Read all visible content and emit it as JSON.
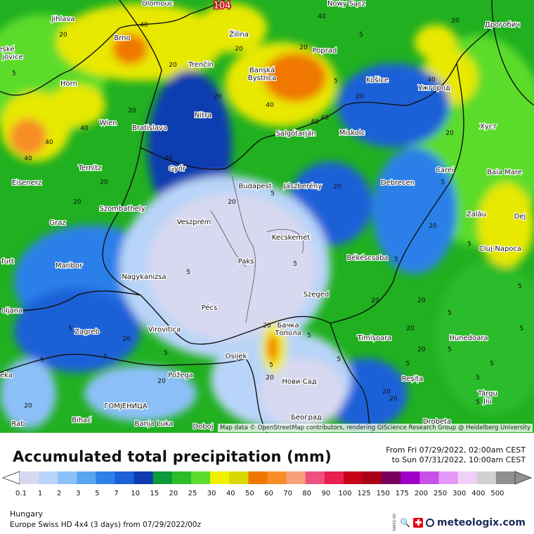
{
  "map": {
    "attribution": "Map data © OpenStreetMap contributors, rendering GIScience Research Group @ Heidelberg University",
    "cities": [
      {
        "name": "Olomouc"
      },
      {
        "name": "Nowy Sącz"
      },
      {
        "name": "Jihlava"
      },
      {
        "name": "Brno"
      },
      {
        "name": "Žilina"
      },
      {
        "name": "Poprad"
      },
      {
        "name": "Дрогобич"
      },
      {
        "name": "eské"
      },
      {
        "name": "jovice"
      },
      {
        "name": "Trenčín"
      },
      {
        "name": "Banská"
      },
      {
        "name": "Bystrica"
      },
      {
        "name": "Košice"
      },
      {
        "name": "Ужгород"
      },
      {
        "name": "Horn"
      },
      {
        "name": "Nitra"
      },
      {
        "name": "Wien"
      },
      {
        "name": "Bratislava"
      },
      {
        "name": "Salgótarján"
      },
      {
        "name": "Miskolc"
      },
      {
        "name": "Хуст"
      },
      {
        "name": "Ternitz"
      },
      {
        "name": "Győr"
      },
      {
        "name": "Carei"
      },
      {
        "name": "Baia Mare"
      },
      {
        "name": "Eisenerz"
      },
      {
        "name": "Budapest"
      },
      {
        "name": "Jászberény"
      },
      {
        "name": "Debrecen"
      },
      {
        "name": "Szombathely"
      },
      {
        "name": "Zalău"
      },
      {
        "name": "Graz"
      },
      {
        "name": "Veszprém"
      },
      {
        "name": "Dej"
      },
      {
        "name": "Kecskemét"
      },
      {
        "name": "Cluj-Napoca"
      },
      {
        "name": "furt"
      },
      {
        "name": "Maribor"
      },
      {
        "name": "Paks"
      },
      {
        "name": "Békéscsaba"
      },
      {
        "name": "Nagykanizsa"
      },
      {
        "name": "Szeged"
      },
      {
        "name": "oljana"
      },
      {
        "name": "Pécs"
      },
      {
        "name": "Бачка"
      },
      {
        "name": "Топола"
      },
      {
        "name": "Zagreb"
      },
      {
        "name": "Virovitica"
      },
      {
        "name": "Timișoara"
      },
      {
        "name": "Hunedoara"
      },
      {
        "name": "Osijek"
      },
      {
        "name": "eka"
      },
      {
        "name": "Požega"
      },
      {
        "name": "Нови Сад"
      },
      {
        "name": "Reșița"
      },
      {
        "name": "Târgu"
      },
      {
        "name": "Jiu"
      },
      {
        "name": "ГОМЈЕНИЦА"
      },
      {
        "name": "Bihać"
      },
      {
        "name": "Београд"
      },
      {
        "name": "Rab"
      },
      {
        "name": "Banja Luka"
      },
      {
        "name": "Doboj"
      },
      {
        "name": "Drobeta"
      }
    ],
    "values": [
      "104",
      "40",
      "20",
      "40",
      "20",
      "20",
      "20",
      "5",
      "40",
      "20",
      "20",
      "40",
      "40",
      "40",
      "20",
      "40",
      "5",
      "5",
      "40",
      "20",
      "20",
      "20",
      "5",
      "20",
      "40",
      "20",
      "20",
      "5",
      "5",
      "20",
      "20",
      "5",
      "20",
      "5",
      "5",
      "5",
      "5",
      "20",
      "5",
      "20",
      "20",
      "20",
      "5",
      "5",
      "5",
      "5",
      "5",
      "20",
      "20",
      "5",
      "5",
      "5",
      "20",
      "20",
      "20",
      "5",
      "5",
      "5",
      "5",
      "20"
    ]
  },
  "footer": {
    "title": "Accumulated total precipitation (mm)",
    "date_from": "From Fri 07/29/2022, 02:00am CEST",
    "date_to": "to Sun 07/31/2022, 10:00am CEST",
    "region": "Hungary",
    "model": "Europe Swiss HD 4x4  (3 days)  from  07/29/2022/00z",
    "swiss_label": "SWISS HD",
    "brand": "meteologix.com"
  },
  "legend": {
    "ticks": [
      "0.1",
      "1",
      "2",
      "3",
      "5",
      "7",
      "10",
      "15",
      "20",
      "25",
      "30",
      "40",
      "50",
      "60",
      "70",
      "80",
      "90",
      "100",
      "125",
      "150",
      "175",
      "200",
      "250",
      "300",
      "400",
      "500"
    ],
    "colors": [
      "#d8d8f0",
      "#b8d4f8",
      "#8cc0f8",
      "#5aa4f0",
      "#2c80e8",
      "#1c60d8",
      "#0c3cb0",
      "#0c9c3c",
      "#2cbc2c",
      "#5cdc2c",
      "#f0f000",
      "#d8d800",
      "#f07800",
      "#f88c28",
      "#f8a078",
      "#f05080",
      "#e82050",
      "#c80018",
      "#a80018",
      "#780060",
      "#a000c8",
      "#c850e8",
      "#e498f8",
      "#f0d0f8",
      "#d0d0d0",
      "#909090"
    ]
  }
}
